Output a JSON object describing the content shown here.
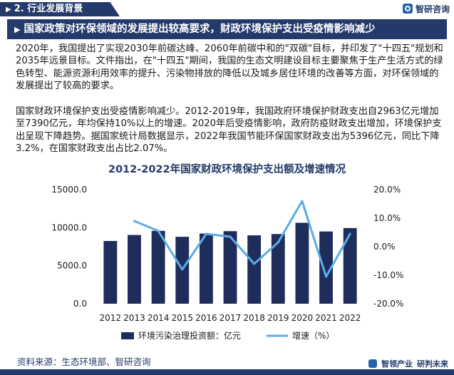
{
  "header": {
    "section_label": "2. 行业发展背景",
    "brand_name": "智研咨询"
  },
  "headline": "国家政策对环保领域的发展提出较高要求，财政环境保护支出受疫情影响减少",
  "paragraphs": [
    "2020年，我国提出了实现2030年前碳达峰、2060年前碳中和的\"双碳\"目标，并印发了\"十四五\"规划和2035年远景目标。文件指出，在\"十四五\"期间，我国的生态文明建设目标主要聚焦于生产生活方式的绿色转型、能源资源利用效率的提升、污染物排放的降低以及城乡居住环境的改善等方面，对环保领域的发展提出了较高的要求。",
    "国家财政环境保护支出受疫情影响减少。2012-2019年，我国政府环境保护财政支出自2963亿元增加至7390亿元，年均保持10%以上的增速。2020年后受疫情影响，政府防疫财政支出增加，环境保护支出呈现下降趋势。据国家统计局数据显示，2022年我国节能环保国家财政支出为5396亿元，同比下降3.2%，在国家财政支出占比2.07%。"
  ],
  "chart_data": {
    "type": "bar",
    "title": "2012-2022年国家财政环境保护支出额及增速情况",
    "categories": [
      "2012",
      "2013",
      "2014",
      "2015",
      "2016",
      "2017",
      "2018",
      "2019",
      "2020",
      "2021",
      "2022"
    ],
    "series": [
      {
        "name": "环境污染治理投资额：亿元",
        "type": "bar",
        "axis": "left",
        "color": "#1f2d5c",
        "values": [
          8250,
          9040,
          9580,
          8800,
          9220,
          9540,
          8990,
          9160,
          10640,
          9500,
          9950
        ]
      },
      {
        "name": "增速（%）",
        "type": "line",
        "axis": "right",
        "color": "#5aade5",
        "values": [
          null,
          9.0,
          5.5,
          -8.0,
          4.5,
          3.5,
          -6.0,
          1.5,
          16.0,
          -10.5,
          4.5
        ]
      }
    ],
    "y_left": {
      "min": 0,
      "max": 15000,
      "ticks": [
        "0.0",
        "5000.0",
        "10000.0",
        "15000.0"
      ]
    },
    "y_right": {
      "min": -20,
      "max": 20,
      "ticks": [
        "-20.0%",
        "-10.0%",
        "0.0%",
        "10.0%",
        "20.0%"
      ]
    },
    "grid": false,
    "legend": "bottom"
  },
  "source": "资料来源：生态环境部、智研咨询",
  "footer": {
    "brand_left": "智领产业",
    "brand_right": "研判未来"
  },
  "colors": {
    "navy": "#233a6b",
    "bar": "#1f2d5c",
    "line": "#5aade5"
  }
}
